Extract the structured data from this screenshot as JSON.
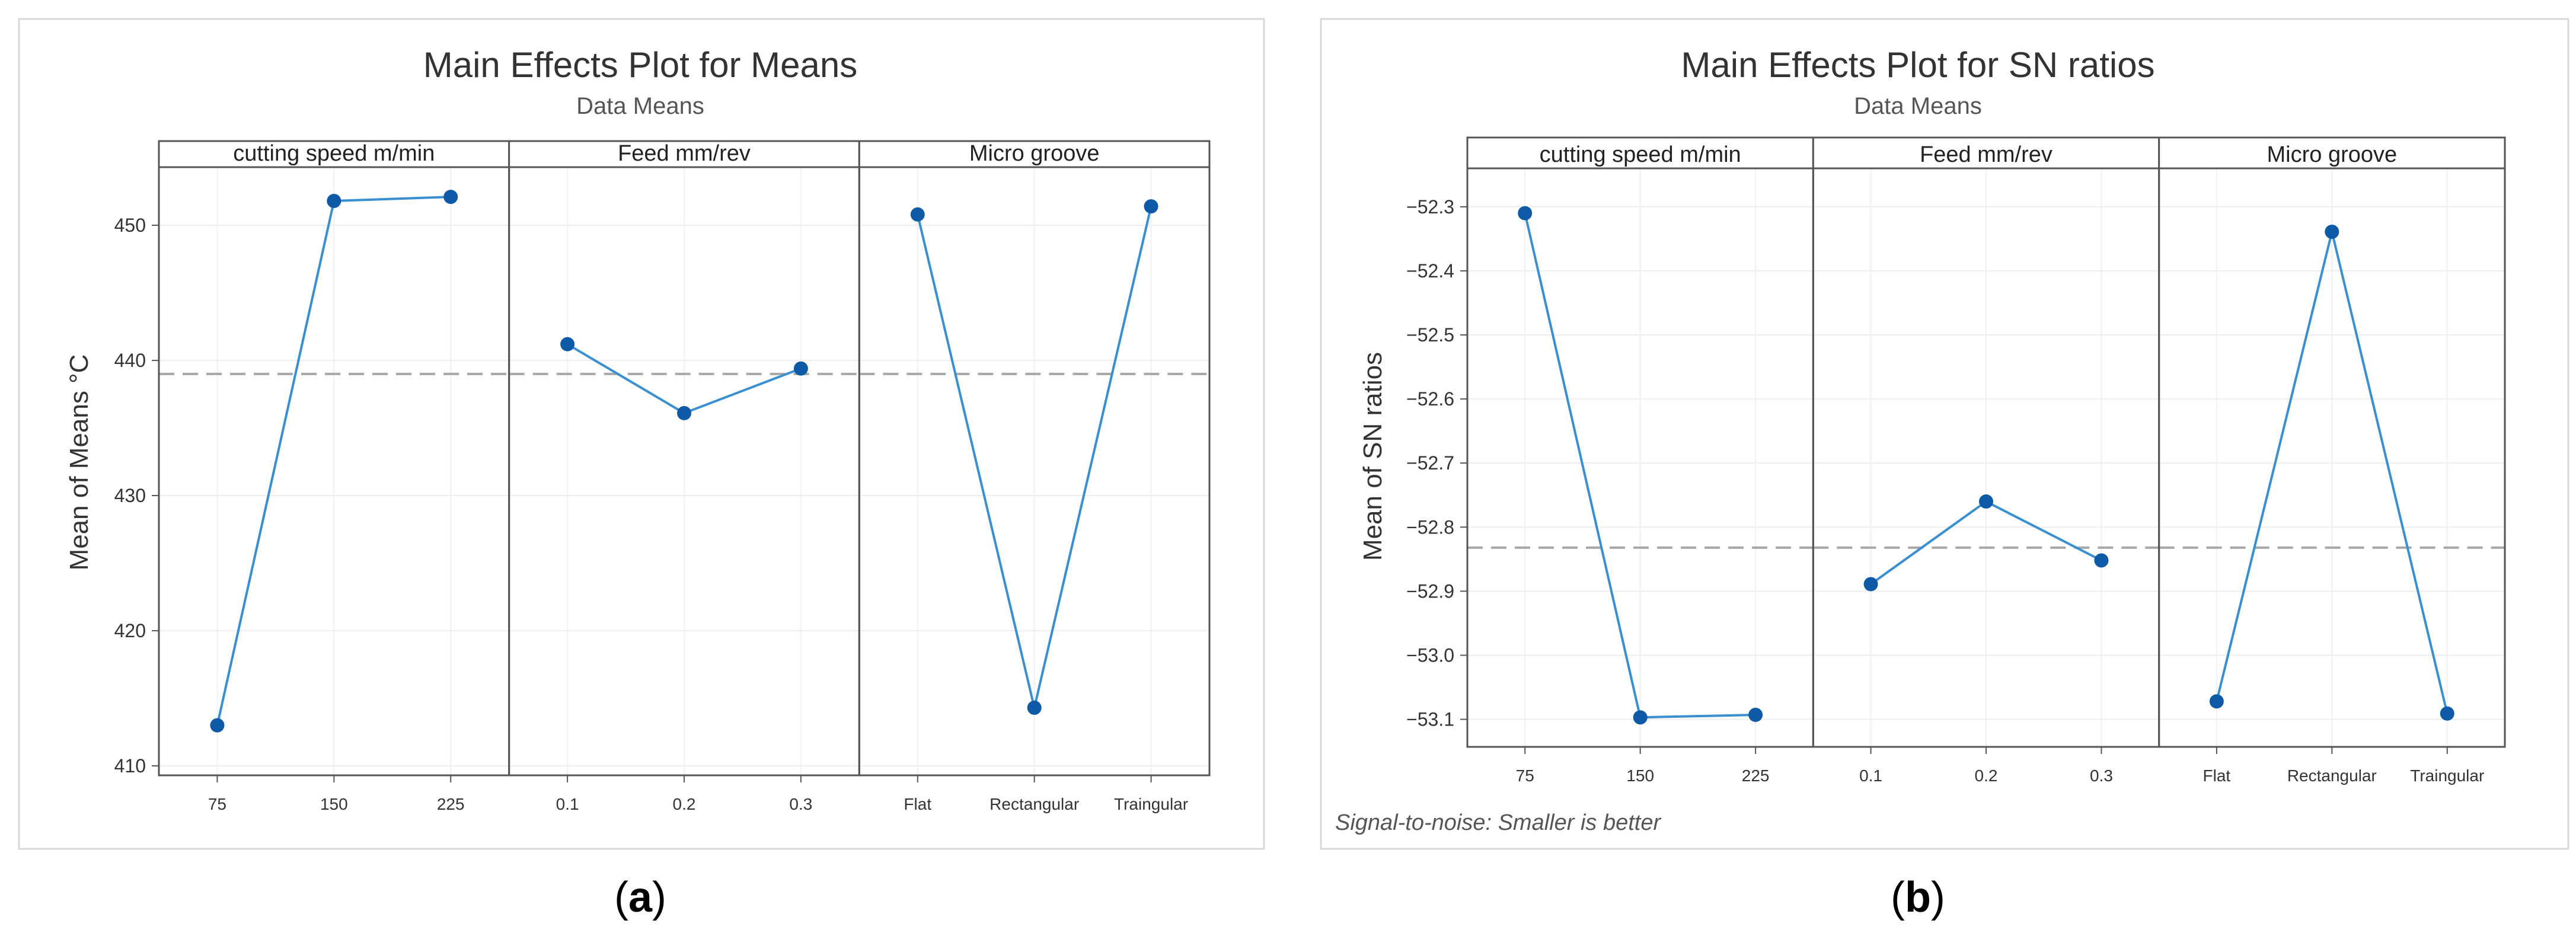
{
  "chart_data": [
    {
      "type": "line",
      "title": "Main Effects Plot for Means",
      "subtitle": "Data Means",
      "ylabel": "Mean of Means °C",
      "ylim": [
        409.3,
        454.3
      ],
      "yticks": [
        410,
        420,
        430,
        440,
        450
      ],
      "reference_line": 439,
      "footnote": "",
      "caption_letter": "a",
      "panels": [
        {
          "name": "cutting speed m/min",
          "categories": [
            "75",
            "150",
            "225"
          ],
          "values": [
            413.0,
            451.8,
            452.1
          ]
        },
        {
          "name": "Feed mm/rev",
          "categories": [
            "0.1",
            "0.2",
            "0.3"
          ],
          "values": [
            441.2,
            436.1,
            439.4
          ]
        },
        {
          "name": "Micro groove",
          "categories": [
            "Flat",
            "Rectangular",
            "Traingular"
          ],
          "values": [
            450.8,
            414.3,
            451.4
          ]
        }
      ],
      "line_color": "#3A8FD0",
      "marker_color": "#0F5AA6",
      "reference_color": "#A8A8A8"
    },
    {
      "type": "line",
      "title": "Main Effects Plot for SN ratios",
      "subtitle": "Data Means",
      "ylabel": "Mean of SN ratios",
      "ylim": [
        -53.143,
        -52.24
      ],
      "yticks": [
        -53.1,
        -53.0,
        -52.9,
        -52.8,
        -52.7,
        -52.6,
        -52.5,
        -52.4,
        -52.3
      ],
      "reference_line": -52.832,
      "footnote": "Signal-to-noise: Smaller is better",
      "caption_letter": "b",
      "panels": [
        {
          "name": "cutting speed m/min",
          "categories": [
            "75",
            "150",
            "225"
          ],
          "values": [
            -52.31,
            -53.097,
            -53.093
          ]
        },
        {
          "name": "Feed mm/rev",
          "categories": [
            "0.1",
            "0.2",
            "0.3"
          ],
          "values": [
            -52.889,
            -52.76,
            -52.852
          ]
        },
        {
          "name": "Micro groove",
          "categories": [
            "Flat",
            "Rectangular",
            "Traingular"
          ],
          "values": [
            -53.072,
            -52.339,
            -53.091
          ]
        }
      ],
      "line_color": "#3A8FD0",
      "marker_color": "#0F5AA6",
      "reference_color": "#A8A8A8"
    }
  ]
}
